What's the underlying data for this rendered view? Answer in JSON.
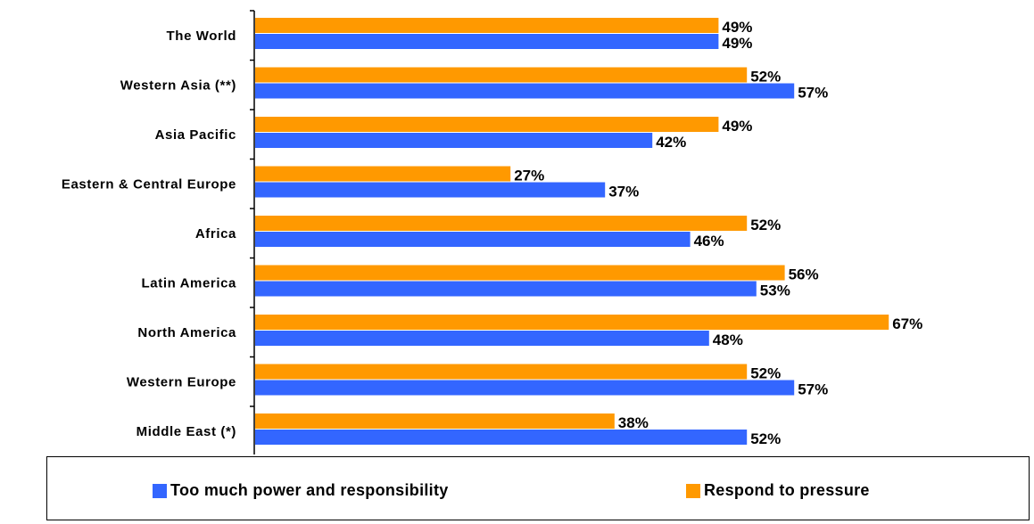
{
  "chart_data": {
    "type": "bar",
    "orientation": "horizontal",
    "categories": [
      "The World",
      "Western Asia (**)",
      "Asia Pacific",
      "Eastern & Central Europe",
      "Africa",
      "Latin America",
      "North America",
      "Western Europe",
      "Middle East (*)"
    ],
    "series": [
      {
        "name": "Respond to pressure",
        "color": "#FF9900",
        "values": [
          49,
          52,
          49,
          27,
          52,
          56,
          67,
          52,
          38
        ],
        "labels": [
          "49%",
          "52%",
          "49%",
          "27%",
          "52%",
          "56%",
          "67%",
          "52%",
          "38%"
        ]
      },
      {
        "name": "Too much power and responsibility",
        "color": "#3366FF",
        "values": [
          49,
          57,
          42,
          37,
          46,
          53,
          48,
          57,
          52
        ],
        "labels": [
          "49%",
          "57%",
          "42%",
          "37%",
          "46%",
          "53%",
          "48%",
          "57%",
          "52%"
        ]
      }
    ],
    "xlim": [
      0,
      100
    ],
    "grid": false,
    "legend": {
      "placement": "bottom",
      "items": [
        {
          "label": "Too much power and responsibility",
          "color": "#3366FF"
        },
        {
          "label": "Respond to pressure",
          "color": "#FF9900"
        }
      ]
    }
  }
}
